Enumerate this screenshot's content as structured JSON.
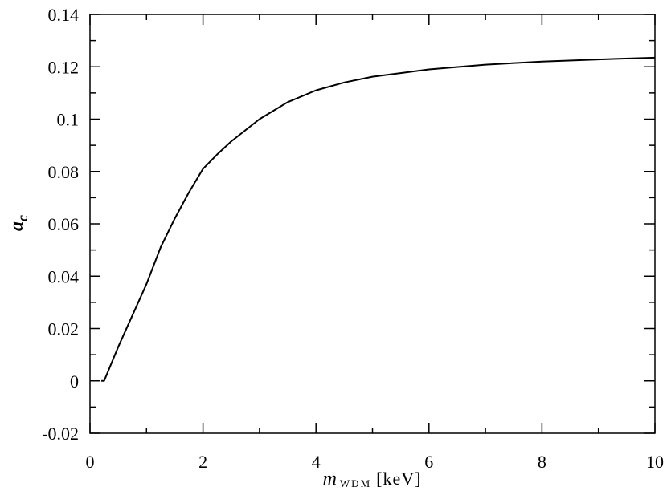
{
  "chart_data": {
    "type": "line",
    "ylabel": "a",
    "ylabel_subscript": "c",
    "xlabel": "m",
    "xlabel_subscript": "WDM",
    "xlabel_unit": "[keV]",
    "x": [
      0.2,
      0.25,
      0.5,
      0.75,
      1,
      1.25,
      1.5,
      1.75,
      2,
      2.25,
      2.5,
      3,
      3.5,
      4,
      4.5,
      5,
      6,
      7,
      8,
      9,
      10
    ],
    "series": [
      {
        "name": "a_c",
        "color": "#000000",
        "values": [
          0,
          0,
          0.013,
          0.025,
          0.037,
          0.051,
          0.062,
          0.072,
          0.081,
          0.0865,
          0.0915,
          0.1,
          0.1065,
          0.111,
          0.114,
          0.1162,
          0.119,
          0.1208,
          0.122,
          0.1228,
          0.1235
        ]
      }
    ],
    "xlim": [
      0,
      10
    ],
    "xticks": [
      0,
      2,
      4,
      6,
      8,
      10
    ],
    "xminorticks": [
      1,
      3,
      5,
      7,
      9
    ],
    "ylim": [
      -0.02,
      0.14
    ],
    "yticks": [
      -0.02,
      0,
      0.02,
      0.04,
      0.06,
      0.08,
      0.1,
      0.12,
      0.14
    ],
    "yminorticks": [
      -0.01,
      0.01,
      0.03,
      0.05,
      0.07,
      0.09,
      0.11,
      0.13
    ],
    "grid": false
  }
}
